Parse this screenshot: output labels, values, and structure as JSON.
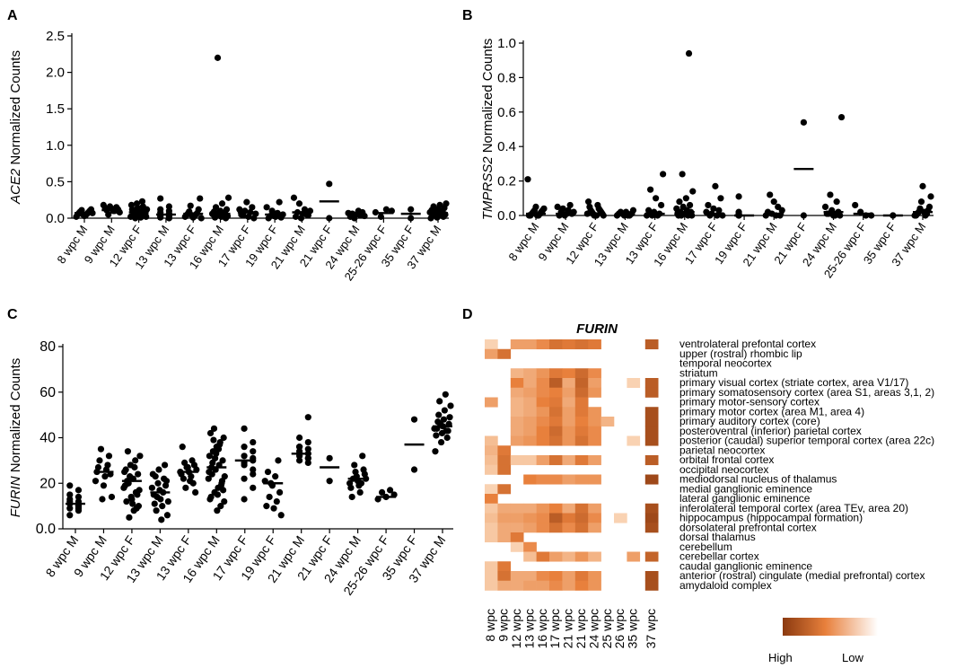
{
  "panel_labels": {
    "A": "A",
    "B": "B",
    "C": "C",
    "D": "D"
  },
  "chart_data": [
    {
      "id": "A",
      "type": "scatter",
      "gene": "ACE2",
      "ylabel_suffix": " Normalized Counts",
      "ylim": [
        0,
        2.5
      ],
      "yticks": [
        "0.0",
        "0.5",
        "1.0",
        "1.5",
        "2.0",
        "2.5"
      ],
      "ytick_values": [
        0,
        0.5,
        1.0,
        1.5,
        2.0,
        2.5
      ],
      "categories": [
        "8 wpc M",
        "9 wpc M",
        "12 wpc F",
        "13 wpc M",
        "13 wpc F",
        "16 wpc M",
        "17 wpc F",
        "19 wpc F",
        "21 wpc M",
        "21 wpc F",
        "24 wpc M",
        "25-26 wpc F",
        "35 wpc F",
        "37 wpc M"
      ],
      "means": [
        0.07,
        0.11,
        0.08,
        0.05,
        0.06,
        0.06,
        0.08,
        0.05,
        0.08,
        0.23,
        0.05,
        0.07,
        0.06,
        0.07
      ],
      "points": [
        [
          0.02,
          0.04,
          0.05,
          0.06,
          0.07,
          0.08,
          0.09,
          0.1,
          0.11,
          0.12,
          0.05,
          0.07,
          0.03
        ],
        [
          0.05,
          0.08,
          0.1,
          0.11,
          0.12,
          0.13,
          0.14,
          0.15,
          0.16,
          0.18,
          0.1
        ],
        [
          0.0,
          0.01,
          0.02,
          0.03,
          0.04,
          0.05,
          0.06,
          0.07,
          0.08,
          0.09,
          0.1,
          0.11,
          0.12,
          0.14,
          0.16,
          0.18,
          0.2,
          0.23,
          0.02,
          0.05,
          0.08,
          0.12
        ],
        [
          0.0,
          0.01,
          0.02,
          0.03,
          0.04,
          0.05,
          0.06,
          0.08,
          0.1,
          0.12,
          0.16,
          0.27,
          0.03,
          0.05
        ],
        [
          0.0,
          0.01,
          0.02,
          0.03,
          0.04,
          0.05,
          0.06,
          0.07,
          0.09,
          0.12,
          0.17,
          0.27,
          0.04
        ],
        [
          0.0,
          0.01,
          0.02,
          0.03,
          0.04,
          0.05,
          0.06,
          0.07,
          0.08,
          0.09,
          0.1,
          0.12,
          0.15,
          0.2,
          0.28,
          2.2,
          0.02,
          0.05,
          0.07
        ],
        [
          0.0,
          0.02,
          0.04,
          0.06,
          0.08,
          0.1,
          0.12,
          0.15,
          0.22,
          0.05
        ],
        [
          0.0,
          0.01,
          0.02,
          0.03,
          0.05,
          0.07,
          0.1,
          0.15,
          0.22,
          0.03
        ],
        [
          0.0,
          0.02,
          0.04,
          0.06,
          0.08,
          0.1,
          0.12,
          0.2,
          0.28,
          0.05
        ],
        [
          0.47,
          0.0
        ],
        [
          0.0,
          0.02,
          0.03,
          0.04,
          0.05,
          0.06,
          0.07,
          0.08,
          0.1
        ],
        [
          0.02,
          0.08,
          0.1,
          0.12
        ],
        [
          0.0,
          0.12
        ],
        [
          0.0,
          0.01,
          0.02,
          0.03,
          0.04,
          0.05,
          0.06,
          0.07,
          0.08,
          0.09,
          0.1,
          0.11,
          0.12,
          0.14,
          0.16,
          0.18,
          0.2,
          0.05,
          0.08
        ]
      ]
    },
    {
      "id": "B",
      "type": "scatter",
      "gene": "TMPRSS2",
      "ylabel_suffix": " Normalized Counts",
      "ylim": [
        0,
        1.0
      ],
      "yticks": [
        "0.0",
        "0.2",
        "0.4",
        "0.6",
        "0.8",
        "1.0"
      ],
      "ytick_values": [
        0,
        0.2,
        0.4,
        0.6,
        0.8,
        1.0
      ],
      "categories": [
        "8 wpc M",
        "9 wpc M",
        "12 wpc F",
        "13 wpc M",
        "13 wpc F",
        "16 wpc M",
        "17 wpc F",
        "19 wpc F",
        "21 wpc M",
        "21 wpc F",
        "24 wpc M",
        "25-26 wpc F",
        "35 wpc F",
        "37 wpc M"
      ],
      "means": [
        0.01,
        0.01,
        0.01,
        0.01,
        0.01,
        0.02,
        0.01,
        0.0,
        0.01,
        0.27,
        0.02,
        0.01,
        0.0,
        0.02
      ],
      "points": [
        [
          0.0,
          0.0,
          0.0,
          0.01,
          0.01,
          0.02,
          0.02,
          0.03,
          0.03,
          0.04,
          0.05,
          0.21,
          0.0
        ],
        [
          0.0,
          0.0,
          0.01,
          0.01,
          0.02,
          0.02,
          0.03,
          0.04,
          0.05,
          0.06
        ],
        [
          0.0,
          0.0,
          0.0,
          0.01,
          0.01,
          0.02,
          0.02,
          0.03,
          0.03,
          0.04,
          0.05,
          0.06,
          0.08,
          0.0,
          0.01
        ],
        [
          0.0,
          0.0,
          0.0,
          0.01,
          0.01,
          0.02,
          0.02,
          0.03,
          0.0,
          0.01
        ],
        [
          0.0,
          0.0,
          0.01,
          0.02,
          0.03,
          0.06,
          0.1,
          0.15,
          0.24,
          0.0
        ],
        [
          0.0,
          0.0,
          0.0,
          0.01,
          0.01,
          0.02,
          0.02,
          0.03,
          0.04,
          0.05,
          0.06,
          0.08,
          0.1,
          0.14,
          0.24,
          0.94,
          0.0,
          0.01
        ],
        [
          0.0,
          0.0,
          0.01,
          0.02,
          0.03,
          0.04,
          0.06,
          0.1,
          0.17,
          0.0
        ],
        [
          0.0,
          0.0,
          0.0,
          0.01,
          0.01,
          0.02,
          0.11
        ],
        [
          0.0,
          0.0,
          0.01,
          0.02,
          0.03,
          0.05,
          0.08,
          0.12,
          0.0
        ],
        [
          0.54,
          0.0
        ],
        [
          0.0,
          0.0,
          0.01,
          0.02,
          0.03,
          0.05,
          0.08,
          0.12,
          0.57,
          0.0,
          0.01
        ],
        [
          0.0,
          0.02,
          0.06,
          0.0
        ],
        [
          0.0,
          0.0
        ],
        [
          0.0,
          0.0,
          0.01,
          0.01,
          0.02,
          0.03,
          0.04,
          0.05,
          0.08,
          0.11,
          0.17,
          0.0,
          0.02
        ]
      ]
    },
    {
      "id": "C",
      "type": "scatter",
      "gene": "FURIN",
      "ylabel_suffix": " Normalized Counts",
      "ylim": [
        0,
        80
      ],
      "yticks": [
        "0.0",
        "20",
        "40",
        "60",
        "80"
      ],
      "ytick_values": [
        0,
        20,
        40,
        60,
        80
      ],
      "categories": [
        "8 wpc M",
        "9 wpc M",
        "12 wpc F",
        "13 wpc M",
        "13 wpc F",
        "16 wpc M",
        "17 wpc F",
        "19 wpc F",
        "21 wpc M",
        "21 wpc F",
        "24 wpc M",
        "25-26 wpc F",
        "35 wpc F",
        "37 wpc M"
      ],
      "means": [
        11,
        25,
        21,
        16,
        25,
        27,
        30,
        20,
        33,
        27,
        22,
        14,
        37,
        45
      ],
      "points": [
        [
          6,
          8,
          9,
          10,
          11,
          12,
          13,
          14,
          15,
          17,
          19,
          10,
          12,
          9
        ],
        [
          13,
          14,
          19,
          21,
          23,
          25,
          26,
          27,
          28,
          30,
          32,
          35,
          24
        ],
        [
          5,
          8,
          10,
          12,
          14,
          16,
          18,
          20,
          22,
          24,
          26,
          28,
          30,
          32,
          34,
          11,
          15,
          19,
          23,
          27,
          17,
          21,
          13,
          9,
          25
        ],
        [
          4,
          6,
          8,
          10,
          12,
          14,
          16,
          18,
          20,
          22,
          24,
          26,
          28,
          15,
          17,
          19,
          11,
          13,
          21,
          23
        ],
        [
          16,
          18,
          20,
          22,
          23,
          24,
          25,
          26,
          27,
          28,
          29,
          30,
          36,
          21,
          25,
          27
        ],
        [
          8,
          10,
          12,
          14,
          16,
          18,
          20,
          22,
          24,
          26,
          28,
          30,
          32,
          34,
          36,
          38,
          40,
          42,
          44,
          15,
          19,
          23,
          27,
          31,
          35,
          21,
          25,
          29,
          33,
          37,
          17,
          13,
          39
        ],
        [
          13,
          18,
          22,
          26,
          28,
          30,
          32,
          34,
          36,
          38,
          44,
          31,
          29,
          24
        ],
        [
          6,
          9,
          10,
          12,
          14,
          16,
          19,
          21,
          23,
          25,
          30,
          20
        ],
        [
          29,
          30,
          31,
          32,
          33,
          34,
          35,
          36,
          38,
          40,
          49,
          33,
          31,
          36
        ],
        [
          21,
          31
        ],
        [
          14,
          16,
          18,
          19,
          20,
          21,
          22,
          23,
          24,
          25,
          26,
          28,
          32,
          22,
          20
        ],
        [
          13,
          14,
          15,
          16,
          17
        ],
        [
          26,
          48
        ],
        [
          34,
          38,
          40,
          41,
          42,
          43,
          44,
          45,
          46,
          47,
          48,
          49,
          50,
          52,
          54,
          56,
          59,
          44,
          46,
          43
        ]
      ]
    },
    {
      "id": "D",
      "type": "heatmap",
      "gene": "FURIN",
      "columns": [
        "8 wpc",
        "9 wpc",
        "12 wpc",
        "13 wpc",
        "16 wpc",
        "17 wpc",
        "21 wpc",
        "21 wpc",
        "24 wpc",
        "25 wpc",
        "26 wpc",
        "35 wpc",
        "37 wpc"
      ],
      "rows": [
        "ventrolateral prefontal cortex",
        "upper (rostral) rhombic lip",
        "temporal neocortex",
        "striatum",
        "primary visual cortex (striate cortex, area V1/17)",
        "primary somatosensory cortex (area S1, areas 3,1, 2)",
        "primary motor-sensory cortex",
        "primary motor cortex (area M1, area 4)",
        "primary auditory cortex (core)",
        "posteroventral (inferior) parietal cortex",
        "posterior (caudal) superior temporal cortex (area 22c)",
        "parietal neocortex",
        "orbital frontal cortex",
        "occipital neocortex",
        "mediodorsal nucleus of thalamus",
        "medial ganglionic eminence",
        "lateral ganglionic eminence",
        "inferolateral temporal cortex (area TEv, area 20)",
        "hippocampus (hippocampal formation)",
        "dorsolateral prefrontal cortex",
        "dorsal thalamus",
        "cerebellum",
        "cerebellar cortex",
        "caudal ganglionic eminence",
        "anterior (rostral) cingulate (medial prefrontal) cortex",
        "amydaloid complex"
      ],
      "values": [
        [
          0.1,
          null,
          0.35,
          0.35,
          0.45,
          0.6,
          0.55,
          0.6,
          0.55,
          null,
          null,
          null,
          0.75
        ],
        [
          0.35,
          0.6,
          null,
          null,
          null,
          null,
          null,
          null,
          null,
          null,
          null,
          null,
          null
        ],
        [
          null,
          null,
          null,
          null,
          null,
          null,
          null,
          null,
          null,
          null,
          null,
          null,
          null
        ],
        [
          null,
          null,
          0.25,
          0.3,
          0.4,
          0.55,
          0.5,
          0.65,
          0.45,
          null,
          null,
          null,
          null
        ],
        [
          null,
          null,
          0.5,
          0.3,
          0.45,
          0.75,
          0.3,
          0.7,
          0.35,
          null,
          null,
          0.1,
          0.75
        ],
        [
          null,
          null,
          0.3,
          0.35,
          0.45,
          0.5,
          0.35,
          0.65,
          0.4,
          null,
          null,
          null,
          0.75
        ],
        [
          0.35,
          null,
          0.25,
          0.3,
          0.5,
          0.55,
          0.3,
          0.55,
          null,
          null,
          null,
          null,
          null
        ],
        [
          null,
          null,
          0.25,
          0.3,
          0.4,
          0.6,
          0.35,
          0.55,
          0.4,
          null,
          null,
          null,
          0.85
        ],
        [
          null,
          null,
          0.3,
          0.35,
          0.45,
          0.55,
          0.35,
          0.5,
          0.4,
          0.25,
          null,
          null,
          0.85
        ],
        [
          null,
          null,
          0.3,
          0.35,
          0.5,
          0.65,
          0.4,
          0.55,
          0.45,
          null,
          null,
          null,
          0.85
        ],
        [
          0.2,
          null,
          0.35,
          0.4,
          0.5,
          0.6,
          0.4,
          0.6,
          0.45,
          null,
          null,
          0.1,
          0.85
        ],
        [
          0.25,
          0.55,
          null,
          null,
          null,
          null,
          null,
          null,
          null,
          null,
          null,
          null,
          null
        ],
        [
          0.2,
          0.6,
          0.15,
          0.15,
          0.35,
          0.6,
          0.3,
          0.55,
          0.35,
          null,
          null,
          null,
          0.75
        ],
        [
          0.15,
          0.6,
          null,
          null,
          null,
          null,
          null,
          null,
          null,
          null,
          null,
          null,
          null
        ],
        [
          null,
          null,
          null,
          0.5,
          0.45,
          0.45,
          0.35,
          0.4,
          0.4,
          null,
          null,
          null,
          0.9
        ],
        [
          0.1,
          0.6,
          null,
          null,
          null,
          null,
          null,
          null,
          null,
          null,
          null,
          null,
          null
        ],
        [
          0.5,
          null,
          null,
          null,
          null,
          null,
          null,
          null,
          null,
          null,
          null,
          null,
          null
        ],
        [
          0.15,
          0.3,
          0.3,
          0.3,
          0.4,
          0.5,
          0.3,
          0.6,
          0.35,
          null,
          null,
          null,
          0.85
        ],
        [
          0.2,
          0.35,
          0.35,
          0.4,
          0.45,
          0.75,
          0.55,
          0.65,
          0.45,
          null,
          0.1,
          null,
          0.9
        ],
        [
          0.15,
          0.3,
          0.3,
          0.35,
          0.45,
          0.6,
          0.45,
          0.6,
          0.35,
          null,
          null,
          null,
          0.85
        ],
        [
          0.15,
          0.3,
          0.55,
          null,
          null,
          null,
          null,
          null,
          null,
          null,
          null,
          null,
          null
        ],
        [
          null,
          null,
          0.1,
          0.45,
          null,
          null,
          null,
          null,
          null,
          null,
          null,
          null,
          null
        ],
        [
          null,
          null,
          null,
          0.2,
          0.55,
          0.35,
          0.25,
          0.4,
          0.25,
          null,
          null,
          0.35,
          0.7
        ],
        [
          0.15,
          0.55,
          null,
          null,
          null,
          null,
          null,
          null,
          null,
          null,
          null,
          null,
          null
        ],
        [
          0.15,
          0.6,
          0.3,
          0.3,
          0.45,
          0.5,
          0.35,
          0.55,
          0.4,
          null,
          null,
          null,
          0.85
        ],
        [
          0.15,
          0.3,
          0.3,
          0.35,
          0.35,
          0.45,
          0.35,
          0.5,
          0.4,
          null,
          null,
          null,
          0.85
        ]
      ],
      "legend": {
        "high": "High",
        "low": "Low"
      },
      "colors": {
        "high": "#8b3a10",
        "mid": "#e8803c",
        "low": "#fde7cf"
      }
    }
  ]
}
